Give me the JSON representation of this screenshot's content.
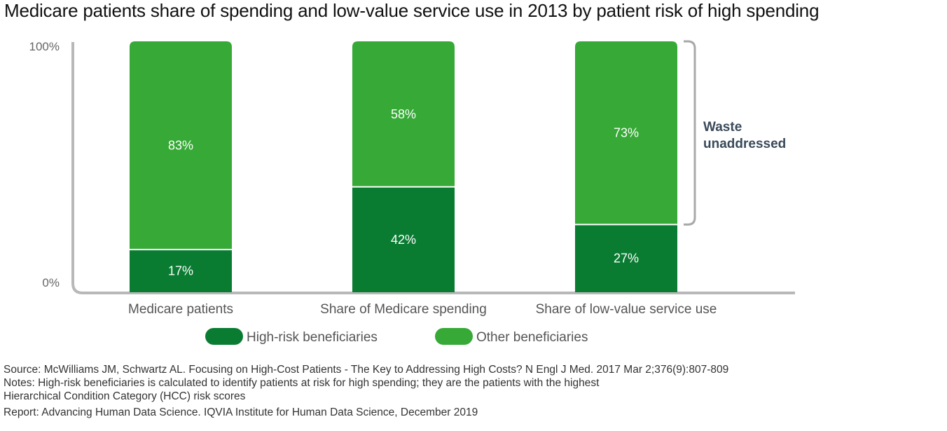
{
  "title": "Medicare patients share of spending and low-value service use in 2013 by patient risk of high spending",
  "chart_data": {
    "type": "bar",
    "stacked": true,
    "categories": [
      "Medicare patients",
      "Share of Medicare spending",
      "Share of low-value service use"
    ],
    "series": [
      {
        "name": "High-risk beneficiaries",
        "values": [
          17,
          42,
          27
        ],
        "labels": [
          "17%",
          "42%",
          "27%"
        ],
        "color": "#0a7c32"
      },
      {
        "name": "Other beneficiaries",
        "values": [
          83,
          58,
          73
        ],
        "labels": [
          "83%",
          "58%",
          "73%"
        ],
        "color": "#36a936"
      }
    ],
    "ylim": [
      0,
      100
    ],
    "yticks": [
      {
        "value": 0,
        "label": "0%"
      },
      {
        "value": 100,
        "label": "100%"
      }
    ],
    "grid": false,
    "legend_position": "bottom",
    "annotation": {
      "lines": [
        "Waste",
        "unaddressed"
      ],
      "bracket_category": "Share of low-value service use",
      "bracket_series": "Other beneficiaries"
    }
  },
  "footer": {
    "source": "Source: McWilliams JM, Schwartz AL. Focusing on High-Cost Patients - The Key to Addressing High Costs? N Engl J Med. 2017 Mar 2;376(9):807-809",
    "notes_line1": "Notes: High-risk beneficiaries is calculated to identify patients at risk for high spending; they are the patients with the highest",
    "notes_line2": "Hierarchical Condition Category (HCC) risk scores",
    "report": "Report: Advancing Human Data Science. IQVIA Institute for Human Data Science, December 2019"
  }
}
